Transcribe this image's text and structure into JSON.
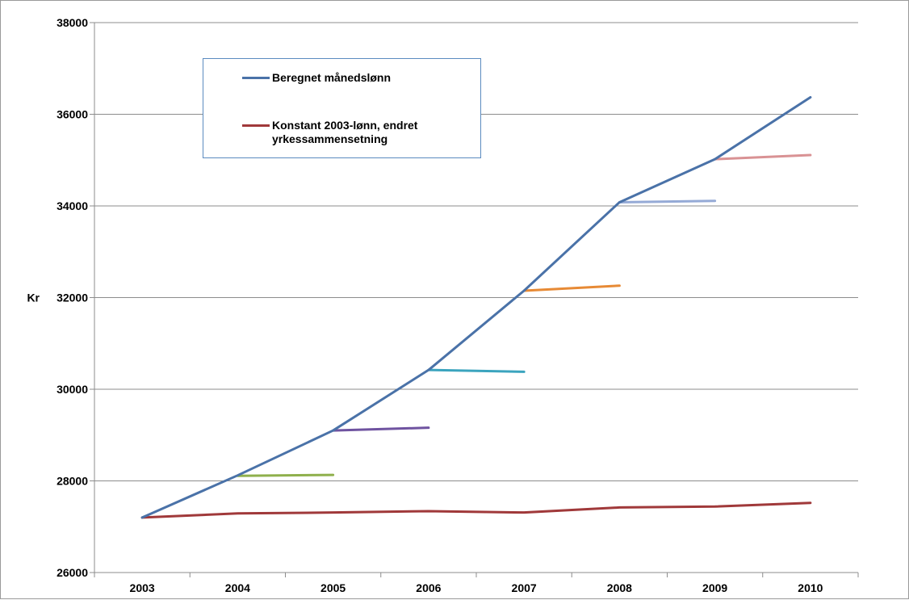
{
  "chart_data": {
    "type": "line",
    "title": "",
    "xlabel": "",
    "ylabel": "Kr",
    "ylim": [
      26000,
      38000
    ],
    "yticks": [
      "26000",
      "28000",
      "30000",
      "32000",
      "34000",
      "36000",
      "38000"
    ],
    "categories": [
      "2003",
      "2004",
      "2005",
      "2006",
      "2007",
      "2008",
      "2009",
      "2010"
    ],
    "grid": true,
    "legend_position": "top-left",
    "series": [
      {
        "name": "Beregnet månedslønn",
        "color": "#4a72a8",
        "values": [
          27200,
          28120,
          29100,
          30420,
          32150,
          34080,
          35020,
          36370
        ]
      },
      {
        "name": "Konstant 2003-lønn, endret yrkessammensetning",
        "color": "#a0393a",
        "values": [
          27200,
          27290,
          27310,
          27340,
          27310,
          27420,
          27440,
          27520
        ]
      }
    ],
    "segments": [
      {
        "color": "#8fb04c",
        "x": [
          "2004",
          "2005"
        ],
        "values": [
          28110,
          28130
        ]
      },
      {
        "color": "#6f53a0",
        "x": [
          "2005",
          "2006"
        ],
        "values": [
          29100,
          29160
        ]
      },
      {
        "color": "#3ba4be",
        "x": [
          "2006",
          "2007"
        ],
        "values": [
          30420,
          30380
        ]
      },
      {
        "color": "#e78a35",
        "x": [
          "2007",
          "2008"
        ],
        "values": [
          32150,
          32260
        ]
      },
      {
        "color": "#95aad6",
        "x": [
          "2008",
          "2009"
        ],
        "values": [
          34080,
          34110
        ]
      },
      {
        "color": "#d99294",
        "x": [
          "2009",
          "2010"
        ],
        "values": [
          35020,
          35110
        ]
      }
    ]
  }
}
